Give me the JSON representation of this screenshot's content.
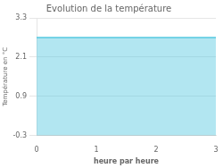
{
  "chart_data": {
    "type": "area",
    "title": "Evolution de la température",
    "xlabel": "heure par heure",
    "ylabel": "Température en °C",
    "x": [
      0,
      3
    ],
    "values": [
      2.7,
      2.7
    ],
    "color": "#55c8e0",
    "xlim": [
      0,
      3
    ],
    "ylim": [
      -0.3,
      3.3
    ],
    "xticks": [
      0,
      1,
      2,
      3
    ],
    "yticks": [
      -0.3,
      0.9,
      2.1,
      3.3
    ],
    "grid": "y"
  }
}
